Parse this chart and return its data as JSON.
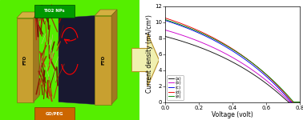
{
  "left_bg_color": "#55ee00",
  "arrow_face_color": "#f0f0b0",
  "arrow_edge_color": "#b8902a",
  "plot_bg": "#ffffff",
  "xlabel": "Voltage (volt)",
  "ylabel": "Current density (mA/cm²)",
  "xlim": [
    0.0,
    0.8
  ],
  "ylim": [
    0.0,
    12.0
  ],
  "xticks": [
    0.0,
    0.2,
    0.4,
    0.6,
    0.8
  ],
  "yticks": [
    0,
    2,
    4,
    6,
    8,
    10,
    12
  ],
  "curves": [
    {
      "label": "(a)",
      "color": "#111111",
      "jsc": 8.2,
      "voc": 0.73,
      "n": 22
    },
    {
      "label": "(b)",
      "color": "#cc00cc",
      "jsc": 9.0,
      "voc": 0.74,
      "n": 22
    },
    {
      "label": "(c)",
      "color": "#0000ee",
      "jsc": 10.2,
      "voc": 0.748,
      "n": 22
    },
    {
      "label": "(d)",
      "color": "#ee0000",
      "jsc": 10.5,
      "voc": 0.755,
      "n": 22
    },
    {
      "label": "(e)",
      "color": "#008800",
      "jsc": 10.3,
      "voc": 0.762,
      "n": 22
    }
  ],
  "legend_loc": "lower left",
  "tick_fontsize": 5,
  "label_fontsize": 5.5,
  "legend_fontsize": 4,
  "label_tio2": "TiO2 NPs",
  "label_go_peg": "GO/PEG",
  "label_fto": "FTO"
}
